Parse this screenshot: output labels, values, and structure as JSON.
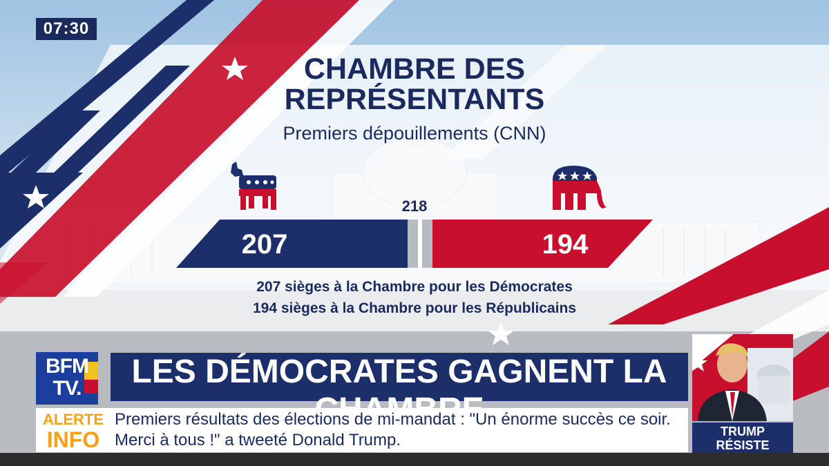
{
  "clock": "07:30",
  "graphic": {
    "title_line1": "CHAMBRE DES",
    "title_line2": "REPRÉSENTANTS",
    "subtitle": "Premiers dépouillements (CNN)",
    "majority_mark": "218",
    "democrats": {
      "seats": "207",
      "color": "#1c2f6b",
      "icon": "donkey-icon"
    },
    "republicans": {
      "seats": "194",
      "color": "#c8102e",
      "icon": "elephant-icon"
    },
    "description_line1": "207 sièges à la Chambre pour les Démocrates",
    "description_line2": "194 sièges à la Chambre pour les Républicains"
  },
  "channel_logo": {
    "line1": "BFM",
    "line2": "TV."
  },
  "headline": "LES DÉMOCRATES GAGNENT LA CHAMBRE",
  "alert": {
    "line1": "ALERTE",
    "line2": "INFO"
  },
  "ticker": "Premiers résultats des élections de mi-mandat : \"Un énorme succès ce soir. Merci à tous !\" a tweeté Donald Trump.",
  "inset": {
    "caption_line1": "TRUMP",
    "caption_line2": "RÉSISTE"
  },
  "colors": {
    "navy": "#1c2f6b",
    "red": "#c8102e",
    "gold": "#f3a21a"
  }
}
